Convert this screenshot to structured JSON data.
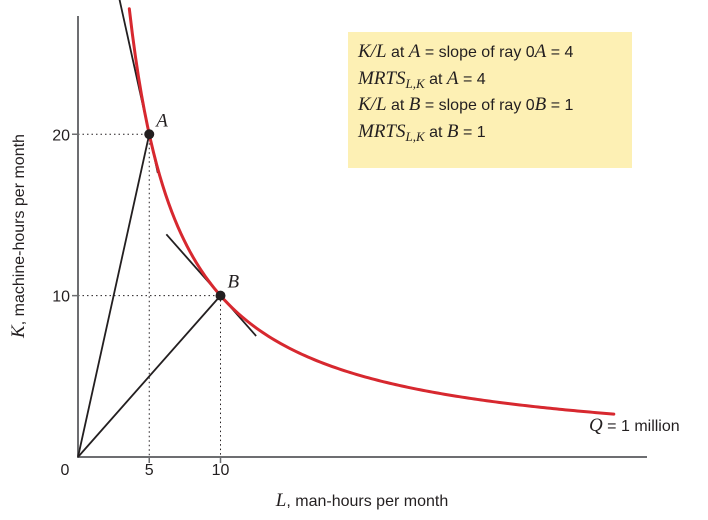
{
  "colors": {
    "curve": "#d7282f",
    "ink": "#231f20",
    "box": "#fdf0b4"
  },
  "chart_data": {
    "type": "line",
    "xlabel_var": "L",
    "xlabel_rest": ", man-hours per month",
    "ylabel_var": "K",
    "ylabel_rest": ", machine-hours per month",
    "origin_label": "0",
    "xlim": [
      0,
      40.0
    ],
    "ylim": [
      0,
      27.7
    ],
    "x_ticks": [
      {
        "value": 5,
        "label": "5"
      },
      {
        "value": 10,
        "label": "10"
      }
    ],
    "y_ticks": [
      {
        "value": 10,
        "label": "10"
      },
      {
        "value": 20,
        "label": "20"
      }
    ],
    "series": [
      {
        "label_var": "Q",
        "label_rest": " = 1 million",
        "function": "K = 100 / L",
        "x_range": [
          3.6,
          37.6
        ]
      }
    ],
    "points": [
      {
        "name": "A",
        "x": 5,
        "y": 20,
        "tangent_slope": -4,
        "tangent_x": [
          1.8,
          5.6
        ]
      },
      {
        "name": "B",
        "x": 10,
        "y": 10,
        "tangent_slope": -1,
        "tangent_x": [
          6.2,
          12.5
        ]
      }
    ],
    "rays": [
      {
        "from": [
          0,
          0
        ],
        "to": [
          5,
          20
        ]
      },
      {
        "from": [
          0,
          0
        ],
        "to": [
          10,
          10
        ]
      }
    ],
    "info_box": {
      "line1": {
        "var": "K/L",
        "text1": " at ",
        "var2": "A",
        "text2": " = slope of ray 0",
        "var3": "A",
        "text3": " = 4"
      },
      "line2": {
        "var": "MRTS",
        "sub": "L,K",
        "text1": " at ",
        "var2": "A",
        "text2": " = 4"
      },
      "line3": {
        "var": "K/L",
        "text1": " at ",
        "var2": "B",
        "text2": " = slope of ray 0",
        "var3": "B",
        "text3": " = 1"
      },
      "line4": {
        "var": "MRTS",
        "sub": "L,K",
        "text1": " at ",
        "var2": "B",
        "text2": " = 1"
      }
    }
  }
}
